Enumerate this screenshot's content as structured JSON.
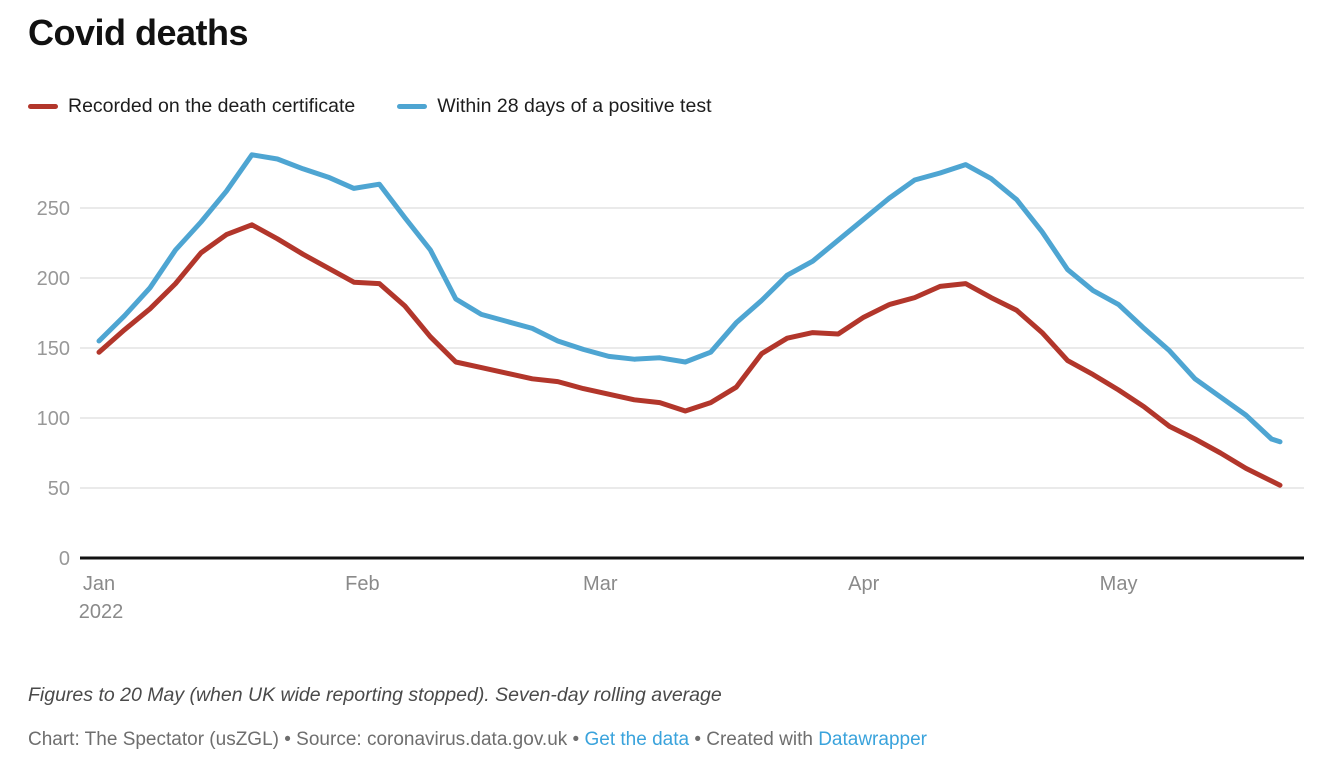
{
  "title": "Covid deaths",
  "legend": [
    {
      "label": "Recorded on the death certificate",
      "color": "#b2362b"
    },
    {
      "label": "Within 28 days of a positive test",
      "color": "#4ea5d2"
    }
  ],
  "footer": {
    "note": "Figures to 20 May (when UK wide reporting stopped). Seven-day rolling average",
    "byline_prefix": "Chart: The Spectator (usZGL) • Source: coronavirus.data.gov.uk • ",
    "get_data_link": "Get the data",
    "created_with": " • Created with ",
    "datawrapper_link": "Datawrapper"
  },
  "colors": {
    "series_red": "#b2362b",
    "series_blue": "#4ea5d2",
    "link_blue": "#3aa3dc",
    "gridline": "#e4e4e4",
    "axis": "#111111",
    "y_label": "#989898",
    "x_label": "#8a8a8a"
  },
  "chart_data": {
    "type": "line",
    "title": "Covid deaths",
    "x_unit": "days since 1 Jan 2022",
    "x": [
      0,
      3,
      6,
      9,
      12,
      15,
      18,
      21,
      24,
      27,
      30,
      33,
      36,
      39,
      42,
      45,
      48,
      51,
      54,
      57,
      60,
      63,
      66,
      69,
      72,
      75,
      78,
      81,
      84,
      87,
      90,
      93,
      96,
      99,
      102,
      105,
      108,
      111,
      114,
      117,
      120,
      123,
      126,
      129,
      132,
      135,
      138,
      139
    ],
    "series": [
      {
        "name": "Recorded on the death certificate",
        "color": "#b2362b",
        "values": [
          147,
          163,
          178,
          196,
          218,
          231,
          238,
          228,
          217,
          207,
          197,
          196,
          180,
          158,
          140,
          136,
          132,
          128,
          126,
          121,
          117,
          113,
          111,
          105,
          111,
          122,
          146,
          157,
          161,
          160,
          172,
          181,
          186,
          194,
          196,
          186,
          177,
          161,
          141,
          131,
          120,
          108,
          94,
          85,
          75,
          64,
          55,
          52
        ]
      },
      {
        "name": "Within 28 days of a positive test",
        "color": "#4ea5d2",
        "values": [
          155,
          173,
          193,
          220,
          240,
          262,
          288,
          285,
          278,
          272,
          264,
          267,
          243,
          220,
          185,
          174,
          169,
          164,
          155,
          149,
          144,
          142,
          143,
          140,
          147,
          168,
          184,
          202,
          212,
          227,
          242,
          257,
          270,
          275,
          281,
          271,
          256,
          233,
          206,
          191,
          181,
          164,
          148,
          128,
          115,
          102,
          85,
          83
        ]
      }
    ],
    "xticks": [
      {
        "label": "Jan",
        "sublabel": "2022",
        "day": 0
      },
      {
        "label": "Feb",
        "day": 31
      },
      {
        "label": "Mar",
        "day": 59
      },
      {
        "label": "Apr",
        "day": 90
      },
      {
        "label": "May",
        "day": 120
      }
    ],
    "yticks": [
      0,
      50,
      100,
      150,
      200,
      250
    ],
    "ylim": [
      0,
      298
    ],
    "grid": "horizontal",
    "legend_position": "top-left"
  }
}
